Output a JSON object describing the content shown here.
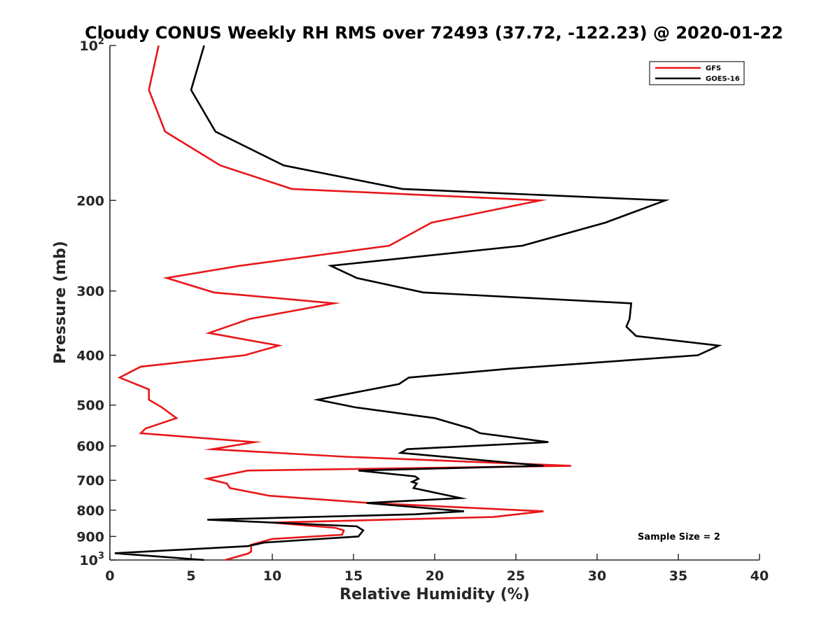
{
  "chart_data": {
    "type": "line",
    "title": "Cloudy CONUS Weekly RH RMS over 72493 (37.72, -122.23) @ 2020-01-22",
    "xlabel": "Relative Humidity (%)",
    "ylabel": "Pressure (mb)",
    "xlim": [
      0,
      40
    ],
    "ylim": [
      100,
      1000
    ],
    "y_scale": "log",
    "y_reversed": true,
    "x_ticks": [
      "0",
      "5",
      "10",
      "15",
      "20",
      "25",
      "30",
      "35",
      "40"
    ],
    "y_ticks": [
      {
        "value": 100,
        "base": "10",
        "exp": "2"
      },
      {
        "value": 200,
        "text": "200"
      },
      {
        "value": 300,
        "text": "300"
      },
      {
        "value": 400,
        "text": "400"
      },
      {
        "value": 500,
        "text": "500"
      },
      {
        "value": 600,
        "text": "600"
      },
      {
        "value": 700,
        "text": "700"
      },
      {
        "value": 800,
        "text": "800"
      },
      {
        "value": 900,
        "text": "900"
      },
      {
        "value": 1000,
        "base": "10",
        "exp": "3"
      }
    ],
    "legend_position": "top-right",
    "annotation": "Sample Size = 2",
    "series": [
      {
        "name": "GFS",
        "color": "#e8171a",
        "points": [
          [
            3.0,
            100
          ],
          [
            2.4,
            122
          ],
          [
            3.4,
            147
          ],
          [
            6.8,
            171
          ],
          [
            11.2,
            190
          ],
          [
            26.5,
            200
          ],
          [
            19.8,
            221
          ],
          [
            17.2,
            245
          ],
          [
            8.0,
            268
          ],
          [
            3.5,
            283
          ],
          [
            6.4,
            302
          ],
          [
            13.8,
            317
          ],
          [
            8.6,
            340
          ],
          [
            6.1,
            362
          ],
          [
            10.4,
            383
          ],
          [
            8.3,
            400
          ],
          [
            1.9,
            421
          ],
          [
            0.6,
            442
          ],
          [
            2.4,
            466
          ],
          [
            2.4,
            488
          ],
          [
            3.2,
            505
          ],
          [
            4.1,
            530
          ],
          [
            2.2,
            555
          ],
          [
            1.9,
            567
          ],
          [
            8.9,
            590
          ],
          [
            6.3,
            609
          ],
          [
            14.5,
            630
          ],
          [
            28.4,
            656
          ],
          [
            8.5,
            670
          ],
          [
            6.0,
            695
          ],
          [
            7.2,
            710
          ],
          [
            7.4,
            725
          ],
          [
            9.8,
            750
          ],
          [
            16.0,
            775
          ],
          [
            26.7,
            804
          ],
          [
            23.6,
            825
          ],
          [
            10.0,
            846
          ],
          [
            13.9,
            866
          ],
          [
            14.4,
            876
          ],
          [
            14.3,
            893
          ],
          [
            10.0,
            910
          ],
          [
            8.7,
            934
          ],
          [
            8.7,
            963
          ],
          [
            8.5,
            972
          ],
          [
            7.1,
            1000
          ]
        ]
      },
      {
        "name": "GOES-16",
        "color": "#000000",
        "points": [
          [
            5.8,
            100
          ],
          [
            5.0,
            122
          ],
          [
            6.5,
            147
          ],
          [
            10.7,
            171
          ],
          [
            18.0,
            190
          ],
          [
            34.2,
            200
          ],
          [
            30.5,
            221
          ],
          [
            25.4,
            245
          ],
          [
            13.6,
            268
          ],
          [
            15.2,
            283
          ],
          [
            19.3,
            302
          ],
          [
            32.1,
            317
          ],
          [
            32.0,
            340
          ],
          [
            31.8,
            352
          ],
          [
            32.4,
            367
          ],
          [
            37.5,
            383
          ],
          [
            36.2,
            400
          ],
          [
            24.5,
            425
          ],
          [
            18.4,
            442
          ],
          [
            17.8,
            455
          ],
          [
            12.8,
            488
          ],
          [
            15.1,
            505
          ],
          [
            20.0,
            530
          ],
          [
            22.2,
            555
          ],
          [
            22.8,
            567
          ],
          [
            27.0,
            590
          ],
          [
            18.3,
            609
          ],
          [
            17.9,
            619
          ],
          [
            26.7,
            656
          ],
          [
            15.3,
            670
          ],
          [
            18.8,
            688
          ],
          [
            19.0,
            695
          ],
          [
            18.6,
            705
          ],
          [
            18.9,
            710
          ],
          [
            18.7,
            725
          ],
          [
            21.6,
            758
          ],
          [
            15.8,
            775
          ],
          [
            21.8,
            804
          ],
          [
            18.8,
            815
          ],
          [
            6.0,
            835
          ],
          [
            15.2,
            860
          ],
          [
            15.6,
            876
          ],
          [
            15.3,
            900
          ],
          [
            9.5,
            925
          ],
          [
            8.5,
            940
          ],
          [
            0.3,
            970
          ],
          [
            5.8,
            1000
          ]
        ]
      }
    ]
  }
}
